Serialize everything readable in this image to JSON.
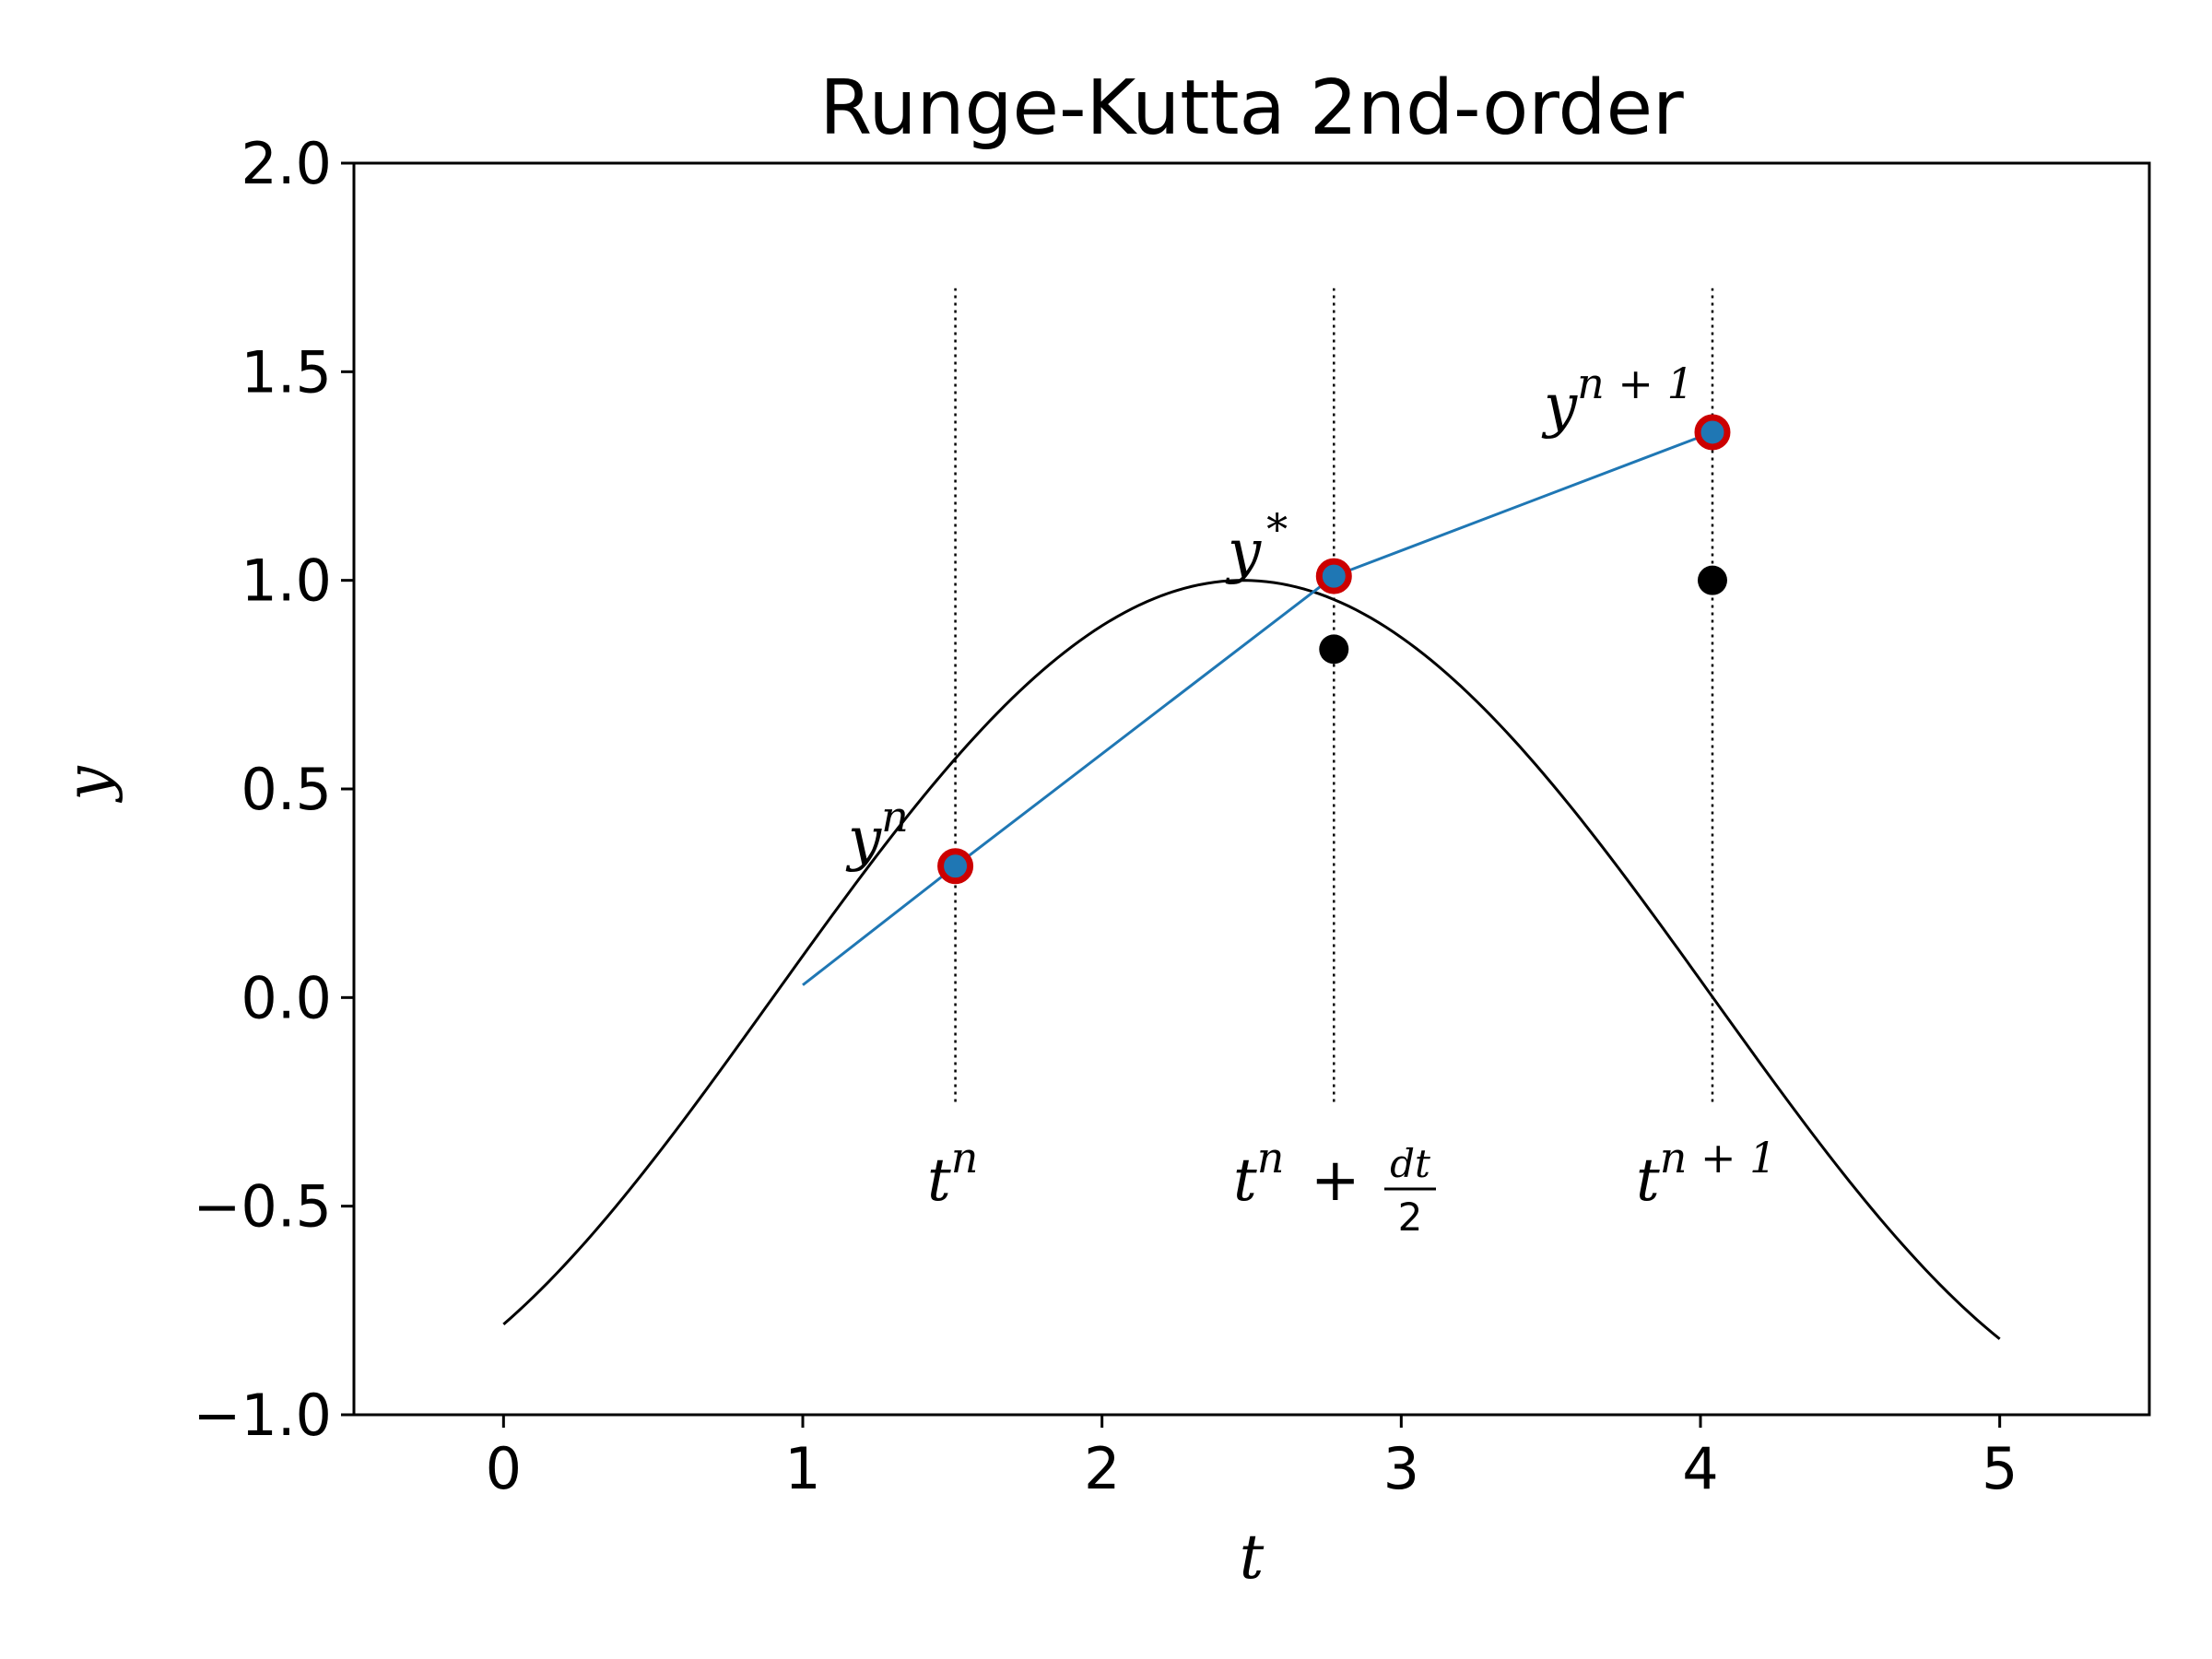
{
  "chart_data": {
    "type": "line",
    "title": "Runge-Kutta 2nd-order",
    "xlabel": "t",
    "ylabel": "y",
    "xlim": [
      -0.5,
      5.5
    ],
    "ylim": [
      -1.0,
      2.0
    ],
    "xticks": [
      0,
      1,
      2,
      3,
      4,
      5
    ],
    "xtick_labels": [
      "0",
      "1",
      "2",
      "3",
      "4",
      "5"
    ],
    "yticks": [
      -1.0,
      -0.5,
      0.0,
      0.5,
      1.0,
      1.5,
      2.0
    ],
    "ytick_labels": [
      "−1.0",
      "−0.5",
      "0.0",
      "0.5",
      "1.0",
      "1.5",
      "2.0"
    ],
    "grid": false,
    "series": [
      {
        "kind": "curve",
        "color": "#000000",
        "function": "sin",
        "x_range": [
          0,
          5
        ],
        "phase": -0.9
      },
      {
        "kind": "polyline",
        "color": "#1f77b4",
        "x": [
          1.0,
          1.51,
          2.775,
          4.04
        ],
        "y": [
          0.03,
          0.315,
          1.01,
          1.355
        ]
      }
    ],
    "exact_points": {
      "color": "#000000",
      "x": [
        2.775,
        4.04
      ],
      "y": [
        0.835,
        1.0
      ]
    },
    "rk_points": {
      "fill": "#1f77b4",
      "edge": "#cc0000",
      "x": [
        1.51,
        2.775,
        4.04
      ],
      "y": [
        0.315,
        1.01,
        1.355
      ]
    },
    "vlines": {
      "x": [
        1.51,
        2.775,
        4.04
      ],
      "y_range": [
        -0.25,
        1.7
      ],
      "style": "dotted"
    },
    "annotations": {
      "tn": {
        "base": "t",
        "sup": "n"
      },
      "t_half": {
        "base": "t",
        "sup": "n",
        "plus": "+",
        "num": "dt",
        "den": "2"
      },
      "tn1": {
        "base": "t",
        "sup": "n + 1"
      },
      "yn": {
        "base": "y",
        "sup": "n"
      },
      "ystar": {
        "base": "y",
        "sup": "*"
      },
      "yn1": {
        "base": "y",
        "sup": "n + 1"
      }
    }
  }
}
